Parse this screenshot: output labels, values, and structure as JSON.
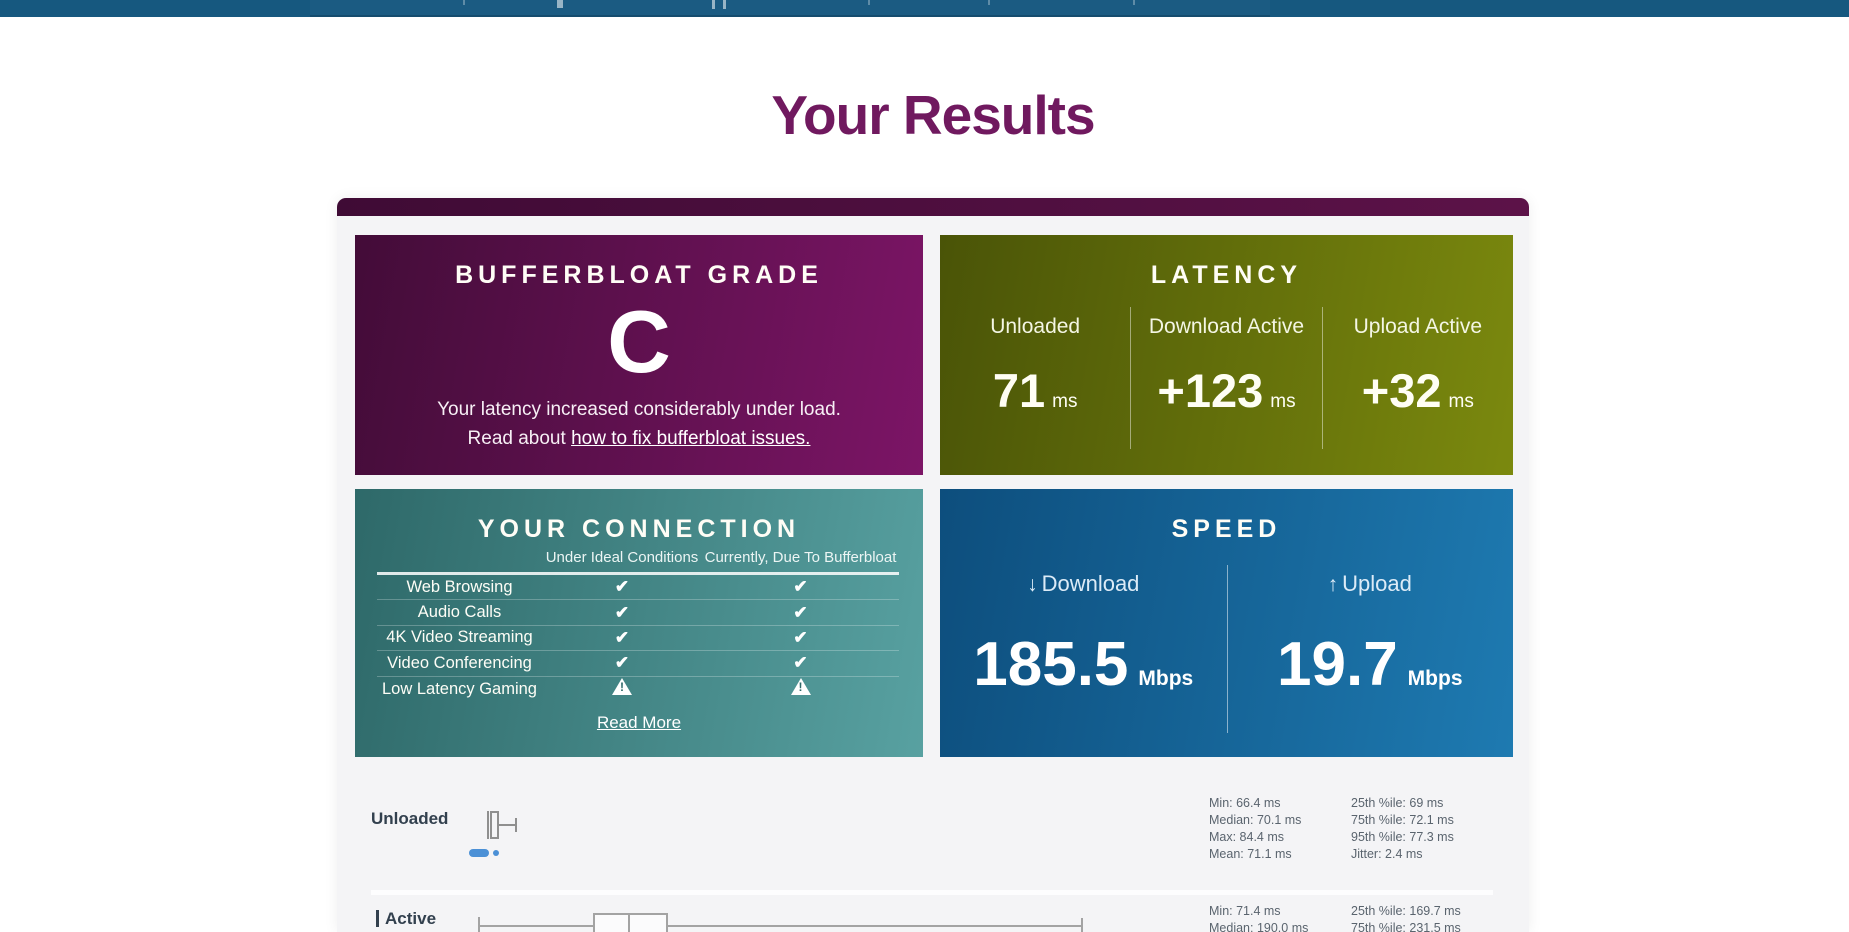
{
  "page": {
    "title": "Your Results"
  },
  "icons": {
    "check": "✔",
    "warning_mark": "!",
    "down_arrow": "↓",
    "up_arrow": "↑"
  },
  "colors": {
    "nav_blue": "#16587f",
    "heading_purple": "#70195f",
    "panel_bg": "#f4f4f6",
    "grade_gradient": [
      "#430c38",
      "#7c1566"
    ],
    "latency_gradient": [
      "#4a5407",
      "#7b890e"
    ],
    "connection_gradient": [
      "#2e6969",
      "#58a1a1"
    ],
    "speed_gradient": [
      "#0d4e7d",
      "#1e7ab1"
    ],
    "sample_dot_blue": "#4b90d6"
  },
  "cards": {
    "grade": {
      "title": "BUFFERBLOAT GRADE",
      "grade": "C",
      "message": "Your latency increased considerably under load.",
      "read_prefix": "Read about ",
      "link_text": "how to fix bufferbloat issues."
    },
    "latency": {
      "title": "LATENCY",
      "columns": [
        {
          "label": "Unloaded",
          "value": "71",
          "unit": "ms"
        },
        {
          "label": "Download Active",
          "value": "+123",
          "unit": "ms"
        },
        {
          "label": "Upload Active",
          "value": "+32",
          "unit": "ms"
        }
      ]
    },
    "connection": {
      "title": "YOUR CONNECTION",
      "col_headers": [
        "Under Ideal Conditions",
        "Currently, Due To Bufferbloat"
      ],
      "rows": [
        {
          "label": "Web Browsing",
          "ideal": "check",
          "current": "check"
        },
        {
          "label": "Audio Calls",
          "ideal": "check",
          "current": "check"
        },
        {
          "label": "4K Video Streaming",
          "ideal": "check",
          "current": "check"
        },
        {
          "label": "Video Conferencing",
          "ideal": "check",
          "current": "check"
        },
        {
          "label": "Low Latency Gaming",
          "ideal": "warn",
          "current": "warn"
        }
      ],
      "read_more": "Read More"
    },
    "speed": {
      "title": "SPEED",
      "columns": [
        {
          "label": "Download",
          "direction": "down",
          "value": "185.5",
          "unit": "Mbps"
        },
        {
          "label": "Upload",
          "direction": "up",
          "value": "19.7",
          "unit": "Mbps"
        }
      ]
    }
  },
  "latency_details": {
    "unloaded": {
      "label": "Unloaded",
      "stats_left": [
        "Min: 66.4 ms",
        "Median: 70.1 ms",
        "Max: 84.4 ms",
        "Mean: 71.1 ms"
      ],
      "stats_right": [
        "25th %ile: 69 ms",
        "75th %ile: 72.1 ms",
        "95th %ile: 77.3 ms",
        "Jitter: 2.4 ms"
      ]
    },
    "active": {
      "label": "Active",
      "stats_left": [
        "Min: 71.4 ms",
        "Median: 190.0 ms"
      ],
      "stats_right": [
        "25th %ile: 169.7 ms",
        "75th %ile: 231.5 ms"
      ]
    }
  }
}
